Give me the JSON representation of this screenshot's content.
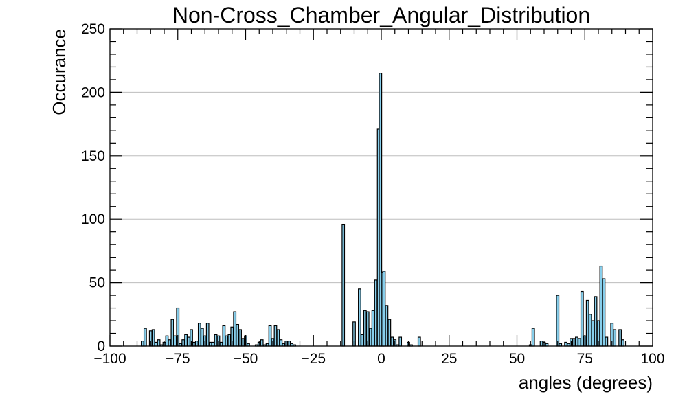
{
  "chart_data": {
    "type": "bar",
    "title": "Non-Cross_Chamber_Angular_Distribution",
    "xlabel": "angles (degrees)",
    "ylabel": "Occurance",
    "xlim": [
      -100,
      100
    ],
    "ylim": [
      0,
      250
    ],
    "xticks": [
      -100,
      -75,
      -50,
      -25,
      0,
      25,
      50,
      75,
      100
    ],
    "yticks": [
      0,
      50,
      100,
      150,
      200,
      250
    ],
    "xtick_labels": [
      "−100",
      "−75",
      "−50",
      "−25",
      "0",
      "25",
      "50",
      "75",
      "100"
    ],
    "ytick_labels": [
      "0",
      "50",
      "100",
      "150",
      "200",
      "250"
    ],
    "grid": "horizontal",
    "bin_width": 0.9,
    "bar_color": "#87ceeb",
    "edge_color": "#000000",
    "bins": [
      {
        "x": -88,
        "y": 4
      },
      {
        "x": -87,
        "y": 14
      },
      {
        "x": -85,
        "y": 12
      },
      {
        "x": -84,
        "y": 13
      },
      {
        "x": -83,
        "y": 3
      },
      {
        "x": -82,
        "y": 5
      },
      {
        "x": -81,
        "y": 1
      },
      {
        "x": -80,
        "y": 3
      },
      {
        "x": -79,
        "y": 8
      },
      {
        "x": -78,
        "y": 5
      },
      {
        "x": -77,
        "y": 21
      },
      {
        "x": -76,
        "y": 8
      },
      {
        "x": -75,
        "y": 30
      },
      {
        "x": -74,
        "y": 2
      },
      {
        "x": -73,
        "y": 5
      },
      {
        "x": -72,
        "y": 9
      },
      {
        "x": -71,
        "y": 7
      },
      {
        "x": -70,
        "y": 13
      },
      {
        "x": -69,
        "y": 3
      },
      {
        "x": -68,
        "y": 4
      },
      {
        "x": -67,
        "y": 18
      },
      {
        "x": -66,
        "y": 14
      },
      {
        "x": -65,
        "y": 8
      },
      {
        "x": -64,
        "y": 18
      },
      {
        "x": -63,
        "y": 3
      },
      {
        "x": -62,
        "y": 3
      },
      {
        "x": -61,
        "y": 9
      },
      {
        "x": -60,
        "y": 8
      },
      {
        "x": -59,
        "y": 3
      },
      {
        "x": -58,
        "y": 16
      },
      {
        "x": -57,
        "y": 8
      },
      {
        "x": -56,
        "y": 9
      },
      {
        "x": -55,
        "y": 15
      },
      {
        "x": -54,
        "y": 27
      },
      {
        "x": -53,
        "y": 17
      },
      {
        "x": -52,
        "y": 13
      },
      {
        "x": -51,
        "y": 6
      },
      {
        "x": -50,
        "y": 8
      },
      {
        "x": -49,
        "y": 2
      },
      {
        "x": -46,
        "y": 1
      },
      {
        "x": -45,
        "y": 3
      },
      {
        "x": -44,
        "y": 5
      },
      {
        "x": -43,
        "y": 1
      },
      {
        "x": -42,
        "y": 2
      },
      {
        "x": -41,
        "y": 16
      },
      {
        "x": -40,
        "y": 6
      },
      {
        "x": -39,
        "y": 16
      },
      {
        "x": -38,
        "y": 13
      },
      {
        "x": -37,
        "y": 5
      },
      {
        "x": -36,
        "y": 2
      },
      {
        "x": -35,
        "y": 4
      },
      {
        "x": -34,
        "y": 4
      },
      {
        "x": -33,
        "y": 2
      },
      {
        "x": -32,
        "y": 1
      },
      {
        "x": -14,
        "y": 96
      },
      {
        "x": -10,
        "y": 19
      },
      {
        "x": -8,
        "y": 45
      },
      {
        "x": -7,
        "y": 9
      },
      {
        "x": -6,
        "y": 28
      },
      {
        "x": -5,
        "y": 27
      },
      {
        "x": -4,
        "y": 14
      },
      {
        "x": -3,
        "y": 28
      },
      {
        "x": -2,
        "y": 52
      },
      {
        "x": -1,
        "y": 171
      },
      {
        "x": -0.3,
        "y": 215
      },
      {
        "x": 0.5,
        "y": 58
      },
      {
        "x": 1,
        "y": 59
      },
      {
        "x": 2,
        "y": 32
      },
      {
        "x": 3,
        "y": 21
      },
      {
        "x": 4,
        "y": 7
      },
      {
        "x": 5,
        "y": 5
      },
      {
        "x": 6,
        "y": 1
      },
      {
        "x": 7,
        "y": 7
      },
      {
        "x": 10,
        "y": 3
      },
      {
        "x": 11,
        "y": 1
      },
      {
        "x": 14,
        "y": 7
      },
      {
        "x": 55,
        "y": 1
      },
      {
        "x": 56,
        "y": 14
      },
      {
        "x": 59,
        "y": 4
      },
      {
        "x": 60,
        "y": 3
      },
      {
        "x": 61,
        "y": 2
      },
      {
        "x": 65,
        "y": 40
      },
      {
        "x": 66,
        "y": 2
      },
      {
        "x": 68,
        "y": 3
      },
      {
        "x": 69,
        "y": 2
      },
      {
        "x": 70,
        "y": 6
      },
      {
        "x": 71,
        "y": 6
      },
      {
        "x": 72,
        "y": 7
      },
      {
        "x": 73,
        "y": 6
      },
      {
        "x": 74,
        "y": 43
      },
      {
        "x": 75,
        "y": 8
      },
      {
        "x": 76,
        "y": 36
      },
      {
        "x": 77,
        "y": 25
      },
      {
        "x": 78,
        "y": 20
      },
      {
        "x": 79,
        "y": 39
      },
      {
        "x": 80,
        "y": 20
      },
      {
        "x": 81,
        "y": 63
      },
      {
        "x": 82,
        "y": 53
      },
      {
        "x": 83,
        "y": 7
      },
      {
        "x": 85,
        "y": 18
      },
      {
        "x": 86,
        "y": 13
      },
      {
        "x": 88,
        "y": 13
      },
      {
        "x": 89,
        "y": 5
      }
    ]
  }
}
